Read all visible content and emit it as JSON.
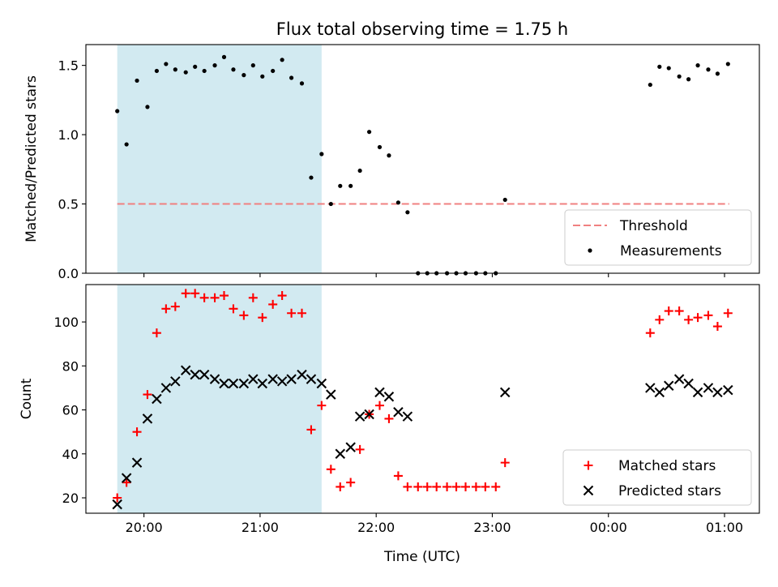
{
  "figure": {
    "title": "Flux total observing time = 1.75 h",
    "xlabel": "Time (UTC)",
    "x_ticks": [
      {
        "t": 20.0,
        "label": "20:00"
      },
      {
        "t": 21.0,
        "label": "21:00"
      },
      {
        "t": 22.0,
        "label": "22:00"
      },
      {
        "t": 23.0,
        "label": "23:00"
      },
      {
        "t": 24.0,
        "label": "00:00"
      },
      {
        "t": 25.0,
        "label": "01:00"
      }
    ],
    "xlim": [
      19.5,
      25.3
    ],
    "shaded_span": {
      "x0": 19.77,
      "x1": 21.53,
      "color": "#add8e6"
    }
  },
  "chart_data": [
    {
      "type": "scatter",
      "ylabel": "Matched/Predicted stars",
      "ylim": [
        0.0,
        1.65
      ],
      "y_ticks": [
        0.0,
        0.5,
        1.0,
        1.5
      ],
      "y_tick_labels": [
        "0.0",
        "0.5",
        "1.0",
        "1.5"
      ],
      "legend": {
        "position": "lower right",
        "entries": [
          "Threshold",
          "Measurements"
        ]
      },
      "threshold": {
        "name": "Threshold",
        "y": 0.5,
        "x_range": [
          19.77,
          25.04
        ],
        "color": "#f08080",
        "style": "dashed"
      },
      "series": [
        {
          "name": "Measurements",
          "marker": "dot",
          "color": "#000000",
          "x": [
            19.77,
            19.85,
            19.94,
            20.03,
            20.11,
            20.19,
            20.27,
            20.36,
            20.44,
            20.52,
            20.61,
            20.69,
            20.77,
            20.86,
            20.94,
            21.02,
            21.11,
            21.19,
            21.27,
            21.36,
            21.44,
            21.53,
            21.61,
            21.69,
            21.78,
            21.86,
            21.94,
            22.03,
            22.11,
            22.19,
            22.27,
            22.36,
            22.44,
            22.52,
            22.61,
            22.69,
            22.77,
            22.86,
            22.94,
            23.03,
            23.11,
            24.36,
            24.44,
            24.52,
            24.61,
            24.69,
            24.77,
            24.86,
            24.94,
            25.03
          ],
          "y": [
            1.17,
            0.93,
            1.39,
            1.2,
            1.46,
            1.51,
            1.47,
            1.45,
            1.49,
            1.46,
            1.5,
            1.56,
            1.47,
            1.43,
            1.5,
            1.42,
            1.46,
            1.54,
            1.41,
            1.37,
            0.69,
            0.86,
            0.5,
            0.63,
            0.63,
            0.74,
            1.02,
            0.91,
            0.85,
            0.51,
            0.44,
            0.0,
            0.0,
            0.0,
            0.0,
            0.0,
            0.0,
            0.0,
            0.0,
            0.0,
            0.53,
            1.36,
            1.49,
            1.48,
            1.42,
            1.4,
            1.5,
            1.47,
            1.44,
            1.51
          ]
        }
      ]
    },
    {
      "type": "scatter",
      "ylabel": "Count",
      "ylim": [
        13,
        117
      ],
      "y_ticks": [
        20,
        40,
        60,
        80,
        100
      ],
      "y_tick_labels": [
        "20",
        "40",
        "60",
        "80",
        "100"
      ],
      "legend": {
        "position": "lower right",
        "entries": [
          "Matched stars",
          "Predicted stars"
        ]
      },
      "series": [
        {
          "name": "Matched stars",
          "marker": "plus",
          "color": "#ff0000",
          "x": [
            19.77,
            19.85,
            19.94,
            20.03,
            20.11,
            20.19,
            20.27,
            20.36,
            20.44,
            20.52,
            20.61,
            20.69,
            20.77,
            20.86,
            20.94,
            21.02,
            21.11,
            21.19,
            21.27,
            21.36,
            21.44,
            21.53,
            21.61,
            21.69,
            21.78,
            21.86,
            21.94,
            22.03,
            22.11,
            22.19,
            22.27,
            22.36,
            22.44,
            22.52,
            22.61,
            22.69,
            22.77,
            22.86,
            22.94,
            23.03,
            23.11,
            24.36,
            24.44,
            24.52,
            24.61,
            24.69,
            24.77,
            24.86,
            24.94,
            25.03
          ],
          "y": [
            20,
            27,
            50,
            67,
            95,
            106,
            107,
            113,
            113,
            111,
            111,
            112,
            106,
            103,
            111,
            102,
            108,
            112,
            104,
            104,
            51,
            62,
            33,
            25,
            27,
            42,
            58,
            62,
            56,
            30,
            25,
            25,
            25,
            25,
            25,
            25,
            25,
            25,
            25,
            25,
            36,
            95,
            101,
            105,
            105,
            101,
            102,
            103,
            98,
            104
          ]
        },
        {
          "name": "Predicted stars",
          "marker": "x",
          "color": "#000000",
          "x": [
            19.77,
            19.85,
            19.94,
            20.03,
            20.11,
            20.19,
            20.27,
            20.36,
            20.44,
            20.52,
            20.61,
            20.69,
            20.77,
            20.86,
            20.94,
            21.02,
            21.11,
            21.19,
            21.27,
            21.36,
            21.44,
            21.53,
            21.61,
            21.69,
            21.78,
            21.86,
            21.94,
            22.03,
            22.11,
            22.19,
            22.27,
            23.11,
            24.36,
            24.44,
            24.52,
            24.61,
            24.69,
            24.77,
            24.86,
            24.94,
            25.03
          ],
          "y": [
            17,
            29,
            36,
            56,
            65,
            70,
            73,
            78,
            76,
            76,
            74,
            72,
            72,
            72,
            74,
            72,
            74,
            73,
            74,
            76,
            74,
            72,
            67,
            40,
            43,
            57,
            58,
            68,
            66,
            59,
            57,
            68,
            70,
            68,
            71,
            74,
            72,
            68,
            70,
            68,
            69
          ]
        }
      ]
    }
  ]
}
